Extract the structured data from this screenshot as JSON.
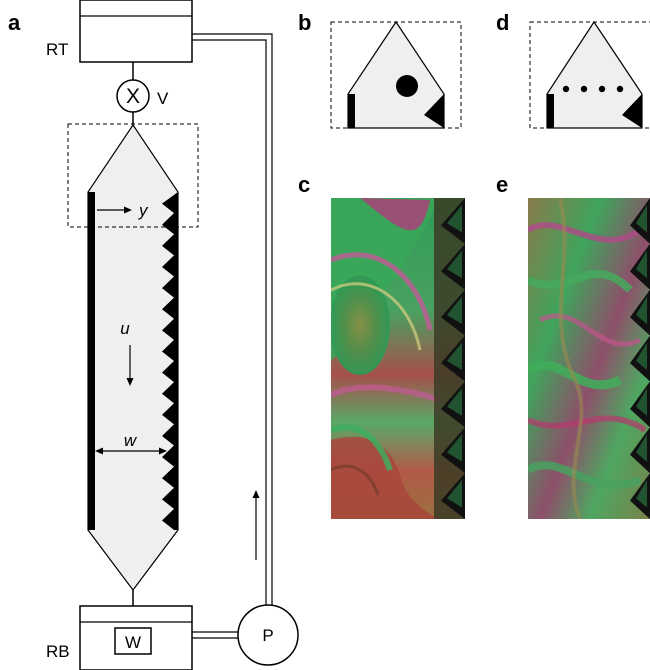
{
  "panels": {
    "a": "a",
    "b": "b",
    "c": "c",
    "d": "d",
    "e": "e"
  },
  "labels": {
    "top_reservoir": "RT",
    "bottom_reservoir": "RB",
    "valve_symbol": "X",
    "valve": "V",
    "pump": "P",
    "weight": "W",
    "y_axis": "y",
    "velocity": "u",
    "width": "w"
  },
  "colors": {
    "channel_fill": "#efefef",
    "line": "#000000",
    "film_green": "#3fae5a",
    "film_magenta": "#b8386e",
    "film_red": "#a5463c"
  },
  "panel_d_dot_count": 4
}
